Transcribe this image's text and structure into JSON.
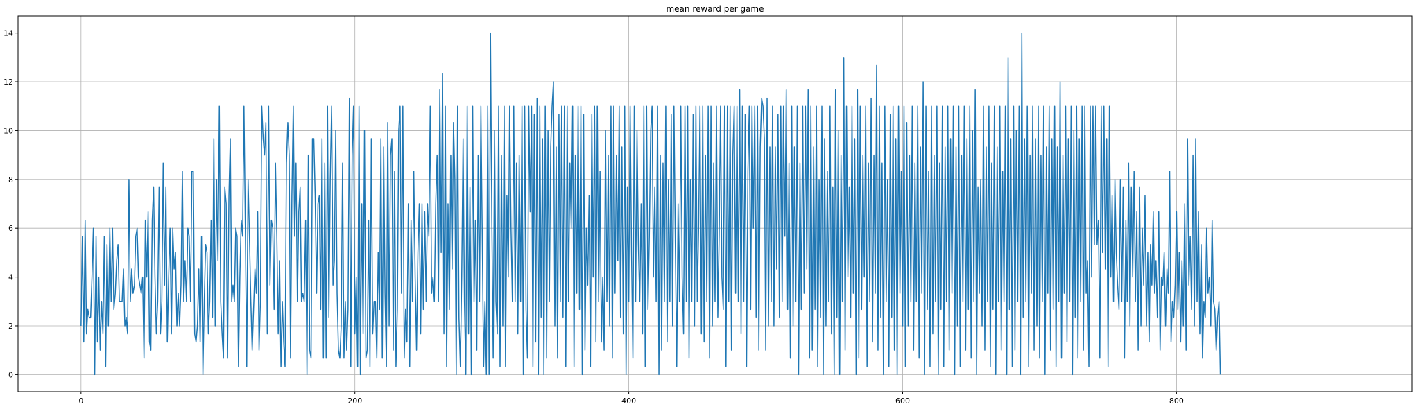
{
  "chart_data": {
    "type": "line",
    "title": "mean reward per game",
    "xlabel": "",
    "ylabel": "",
    "xlim": [
      -46,
      972
    ],
    "ylim": [
      -0.7,
      14.7
    ],
    "xticks": [
      0,
      200,
      400,
      600,
      800
    ],
    "yticks": [
      0,
      2,
      4,
      6,
      8,
      10,
      12,
      14
    ],
    "grid": true,
    "series": [
      {
        "color": "#1f77b4",
        "x_start": 0,
        "x_step": 1,
        "values": [
          2,
          5.67,
          1.33,
          6.33,
          1.67,
          2.67,
          2.33,
          2.33,
          4,
          6,
          0,
          5.67,
          1.33,
          4,
          1,
          3,
          1.67,
          5.67,
          0.33,
          5.33,
          2,
          6,
          3,
          6,
          2.67,
          3.33,
          4.67,
          5.33,
          3,
          3,
          3,
          4.33,
          2,
          2.33,
          1.67,
          8,
          3,
          4.33,
          3.33,
          3.67,
          5.67,
          6,
          4,
          3.67,
          3.33,
          4,
          0.67,
          6.33,
          4,
          6.67,
          1.33,
          1,
          6.33,
          7.67,
          4,
          1.67,
          3,
          7.67,
          1.67,
          3,
          8.67,
          3.67,
          7.67,
          1.33,
          4,
          6,
          1.67,
          6,
          4.33,
          5,
          2,
          3.33,
          2,
          3.67,
          8.33,
          3,
          4.67,
          3,
          6,
          5.67,
          3,
          8.33,
          8.33,
          1.67,
          1.33,
          2,
          4.33,
          1.33,
          5.67,
          0,
          3,
          5.33,
          5,
          1.67,
          3,
          6.33,
          2.33,
          9.67,
          2,
          8,
          4.67,
          11,
          3,
          1.67,
          0.67,
          7.67,
          7,
          0.67,
          7.33,
          9.67,
          3,
          3.67,
          3,
          6,
          5.67,
          0.33,
          4,
          6.33,
          5.67,
          11,
          6,
          0.33,
          8,
          5.67,
          3,
          1,
          2.67,
          4.33,
          3.33,
          6.67,
          1,
          3,
          11,
          9.67,
          9,
          10.33,
          1.67,
          11,
          3.67,
          6.33,
          6,
          2.67,
          8.67,
          5.67,
          1.67,
          4.67,
          0.33,
          3,
          1.33,
          0.33,
          8.67,
          10.33,
          9,
          0.67,
          7.33,
          11,
          5.67,
          8.67,
          3,
          6.67,
          7.67,
          3,
          3.33,
          3,
          6.33,
          0,
          9,
          1,
          0.67,
          9.67,
          9.67,
          7.33,
          3.33,
          7,
          7.33,
          2.67,
          9.67,
          0.67,
          8.67,
          0.67,
          11,
          2.33,
          8,
          11,
          3.67,
          4.67,
          10,
          3.33,
          1,
          0.67,
          2,
          8.67,
          0.67,
          3,
          1,
          2.67,
          11.33,
          0.33,
          9,
          11,
          1.67,
          4,
          0.33,
          11,
          0,
          7,
          1.67,
          10,
          0.67,
          1,
          6.33,
          0.33,
          9.67,
          1.67,
          3,
          3,
          0.67,
          5,
          2.67,
          9.67,
          0.67,
          9.33,
          3.33,
          0.33,
          10.33,
          2,
          9,
          9.67,
          1,
          8.33,
          0.33,
          2.67,
          10,
          11,
          3.33,
          11,
          0.67,
          2.67,
          1.33,
          7,
          0.33,
          6.33,
          3,
          8.33,
          4,
          1,
          5,
          7,
          1.67,
          7,
          2.67,
          6.67,
          3,
          7,
          5.67,
          11,
          3.33,
          4,
          3,
          7,
          9,
          3,
          11.67,
          5,
          12.33,
          1.67,
          11,
          0.33,
          7,
          2.67,
          9,
          4.33,
          10.33,
          8,
          0,
          11,
          2.33,
          0.33,
          4,
          9.67,
          3,
          0,
          11,
          1.67,
          7.67,
          0,
          11,
          3,
          6.33,
          1,
          9,
          3,
          11,
          5.67,
          0.33,
          3,
          0,
          11,
          0,
          14,
          6.33,
          0.67,
          10,
          3,
          1.67,
          11,
          0.33,
          9,
          2,
          11,
          0.33,
          7.33,
          4,
          11,
          6,
          3,
          11,
          3,
          8.67,
          1.67,
          9,
          3,
          11,
          0,
          11,
          2.67,
          0.67,
          11,
          6.67,
          11,
          0.33,
          10.67,
          1.33,
          11.33,
          0,
          11,
          2.33,
          9.67,
          0,
          11,
          0.67,
          10,
          3,
          9.33,
          11,
          12,
          2,
          9.33,
          0.67,
          10.67,
          3,
          11,
          2.33,
          11,
          0.33,
          11,
          3,
          8.67,
          6,
          11,
          0.33,
          9,
          3.33,
          11,
          2.67,
          11,
          0,
          10.67,
          1,
          6,
          3.67,
          7.33,
          0.33,
          10.67,
          4,
          11,
          1.33,
          11,
          3,
          8.33,
          1.33,
          4,
          1,
          10,
          3,
          9,
          2,
          11,
          0.67,
          11,
          3.33,
          9,
          4.67,
          11,
          2.33,
          9.33,
          1.67,
          11,
          0,
          7.67,
          3,
          11,
          5,
          0.67,
          11,
          3,
          10,
          5.33,
          3,
          7,
          1.67,
          11,
          0.33,
          11,
          2.67,
          5.67,
          10,
          11,
          4,
          7.67,
          3,
          11,
          0,
          9,
          1,
          8.67,
          3,
          11,
          1.33,
          8,
          3,
          10.67,
          2,
          11,
          5.33,
          0.33,
          7,
          3,
          11,
          4,
          1.67,
          11,
          3,
          11,
          0.67,
          8,
          3,
          10.67,
          2,
          11,
          3,
          6,
          11,
          1.67,
          11,
          1.33,
          9,
          3,
          11,
          0.67,
          11,
          2,
          8.67,
          3,
          11,
          2.33,
          5.67,
          11,
          4,
          2.67,
          11,
          0.33,
          11,
          3,
          11,
          1,
          9,
          11,
          3.33,
          11,
          3,
          11.67,
          1.67,
          11,
          3,
          10.67,
          0.33,
          8.33,
          11,
          2.67,
          11,
          6,
          11,
          2.33,
          11,
          1,
          9.33,
          11.33,
          11,
          9.67,
          1,
          11.33,
          2,
          9.33,
          3,
          11,
          2,
          9.33,
          4.33,
          10.67,
          2.33,
          11,
          3,
          11,
          5.67,
          11.67,
          2.67,
          8.67,
          0.67,
          11,
          2,
          9.33,
          3,
          11,
          0,
          8.67,
          2.67,
          11,
          3.33,
          11,
          4.33,
          11.67,
          0.67,
          11,
          1,
          9.33,
          2.67,
          11,
          0.33,
          8,
          2.33,
          11,
          0,
          9.67,
          2,
          8.33,
          3,
          11,
          1.67,
          7.67,
          0,
          11.67,
          2.33,
          10,
          0,
          9,
          3,
          13,
          1,
          11,
          4,
          7.67,
          2.33,
          11,
          3.33,
          9.67,
          0,
          11.67,
          0.67,
          11,
          2.67,
          9,
          4,
          11,
          0.33,
          8.67,
          3,
          11.33,
          1.33,
          9,
          3.33,
          12.67,
          1,
          11,
          2.33,
          8.67,
          0,
          11,
          3,
          8,
          0.33,
          10.67,
          2.33,
          11,
          1,
          9.67,
          0,
          11,
          3.33,
          8.33,
          2,
          11,
          0.33,
          10.33,
          2,
          9,
          3,
          11,
          1,
          8.67,
          3,
          11,
          0.67,
          9.33,
          3.33,
          12,
          0,
          11,
          2.67,
          8.33,
          0.33,
          11,
          1.67,
          9,
          3,
          11,
          0,
          8.67,
          2.67,
          11,
          0.33,
          9.33,
          3,
          11,
          1,
          9.67,
          3.33,
          11,
          0,
          9.33,
          2,
          11,
          0.33,
          9,
          3,
          11,
          1,
          9.67,
          2.67,
          11,
          0.67,
          10,
          3,
          11.67,
          0,
          7.67,
          3.33,
          8,
          2,
          11,
          1,
          9.33,
          3,
          11,
          0.33,
          8.67,
          2.67,
          11,
          0,
          9.33,
          3,
          11,
          1,
          8.33,
          3,
          11,
          0,
          13,
          2.67,
          9.67,
          0.33,
          11,
          1,
          10,
          3,
          11,
          0,
          14,
          2.33,
          9.67,
          3,
          11,
          0.33,
          9,
          3.33,
          11,
          1,
          9.67,
          2,
          11,
          0.67,
          9,
          3,
          11,
          0,
          9.33,
          3.33,
          11,
          1,
          9.67,
          2.67,
          11,
          0.33,
          9.33,
          3,
          12,
          0.67,
          9,
          3.33,
          11,
          1.33,
          9.67,
          3,
          11,
          0,
          10,
          2.33,
          11,
          0.67,
          9.67,
          3,
          11,
          1,
          11,
          3.33,
          4.67,
          0.33,
          11,
          4,
          11,
          5.33,
          11,
          5.33,
          6.33,
          0.67,
          11,
          5,
          11,
          4.33,
          9.67,
          0.33,
          11,
          4,
          7.33,
          3,
          8,
          5,
          3.67,
          2.67,
          8,
          3,
          7.67,
          0.67,
          6.33,
          3,
          8.67,
          2,
          7.67,
          4,
          8.33,
          3,
          6.67,
          1,
          7.67,
          2,
          6,
          3.67,
          7.33,
          2,
          5,
          1.33,
          5.33,
          3.67,
          6.67,
          3.33,
          4.67,
          2.33,
          6.67,
          1,
          4,
          3.67,
          5,
          2,
          4.33,
          3.33,
          8.33,
          1.33,
          3,
          2.33,
          3.67,
          6.67,
          2.67,
          5,
          1.33,
          4.67,
          2,
          7,
          1,
          9.67,
          3.67,
          5.67,
          2.67,
          9,
          2,
          9.67,
          3,
          6.67,
          1.67,
          5.33,
          0.67,
          3,
          2.33,
          6,
          3.33,
          4,
          2,
          6.33,
          3,
          2.67,
          1,
          2.33,
          3,
          0
        ]
      }
    ]
  }
}
